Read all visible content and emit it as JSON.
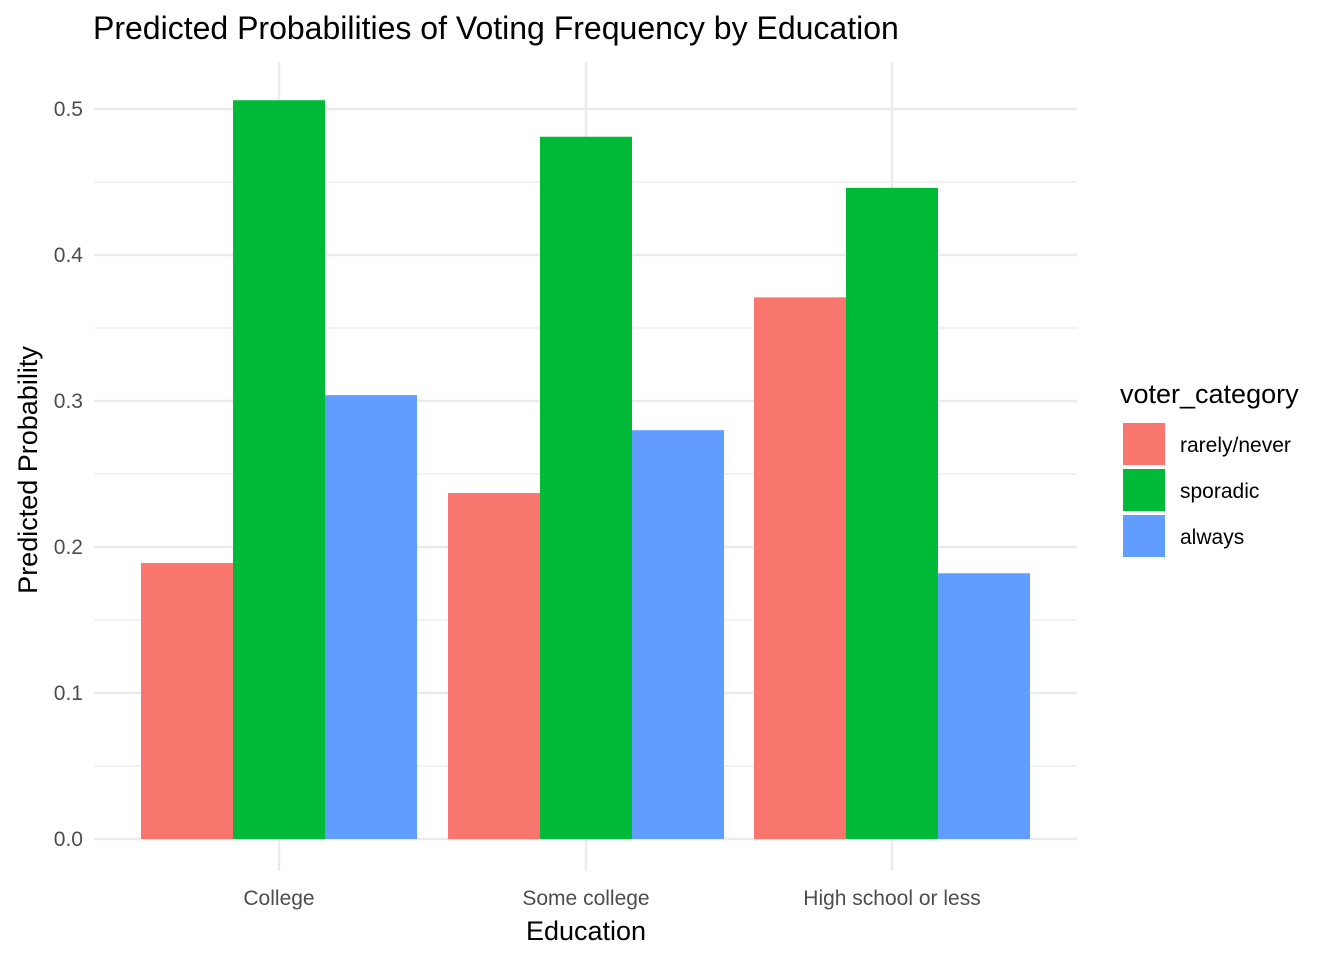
{
  "chart_data": {
    "type": "bar",
    "title": "Predicted Probabilities of Voting Frequency by Education",
    "xlabel": "Education",
    "ylabel": "Predicted Probability",
    "categories": [
      "College",
      "Some college",
      "High school or less"
    ],
    "ylim": [
      0,
      0.53
    ],
    "yticks": [
      "0.0",
      "0.1",
      "0.2",
      "0.3",
      "0.4",
      "0.5"
    ],
    "ytick_values": [
      0,
      0.1,
      0.2,
      0.3,
      0.4,
      0.5
    ],
    "legend_title": "voter_category",
    "legend_position": "right",
    "grid": true,
    "series": [
      {
        "name": "rarely/never",
        "color": "#F8766D",
        "values": [
          0.189,
          0.237,
          0.371
        ]
      },
      {
        "name": "sporadic",
        "color": "#00BA38",
        "values": [
          0.506,
          0.481,
          0.446
        ]
      },
      {
        "name": "always",
        "color": "#619CFF",
        "values": [
          0.304,
          0.28,
          0.182
        ]
      }
    ]
  }
}
